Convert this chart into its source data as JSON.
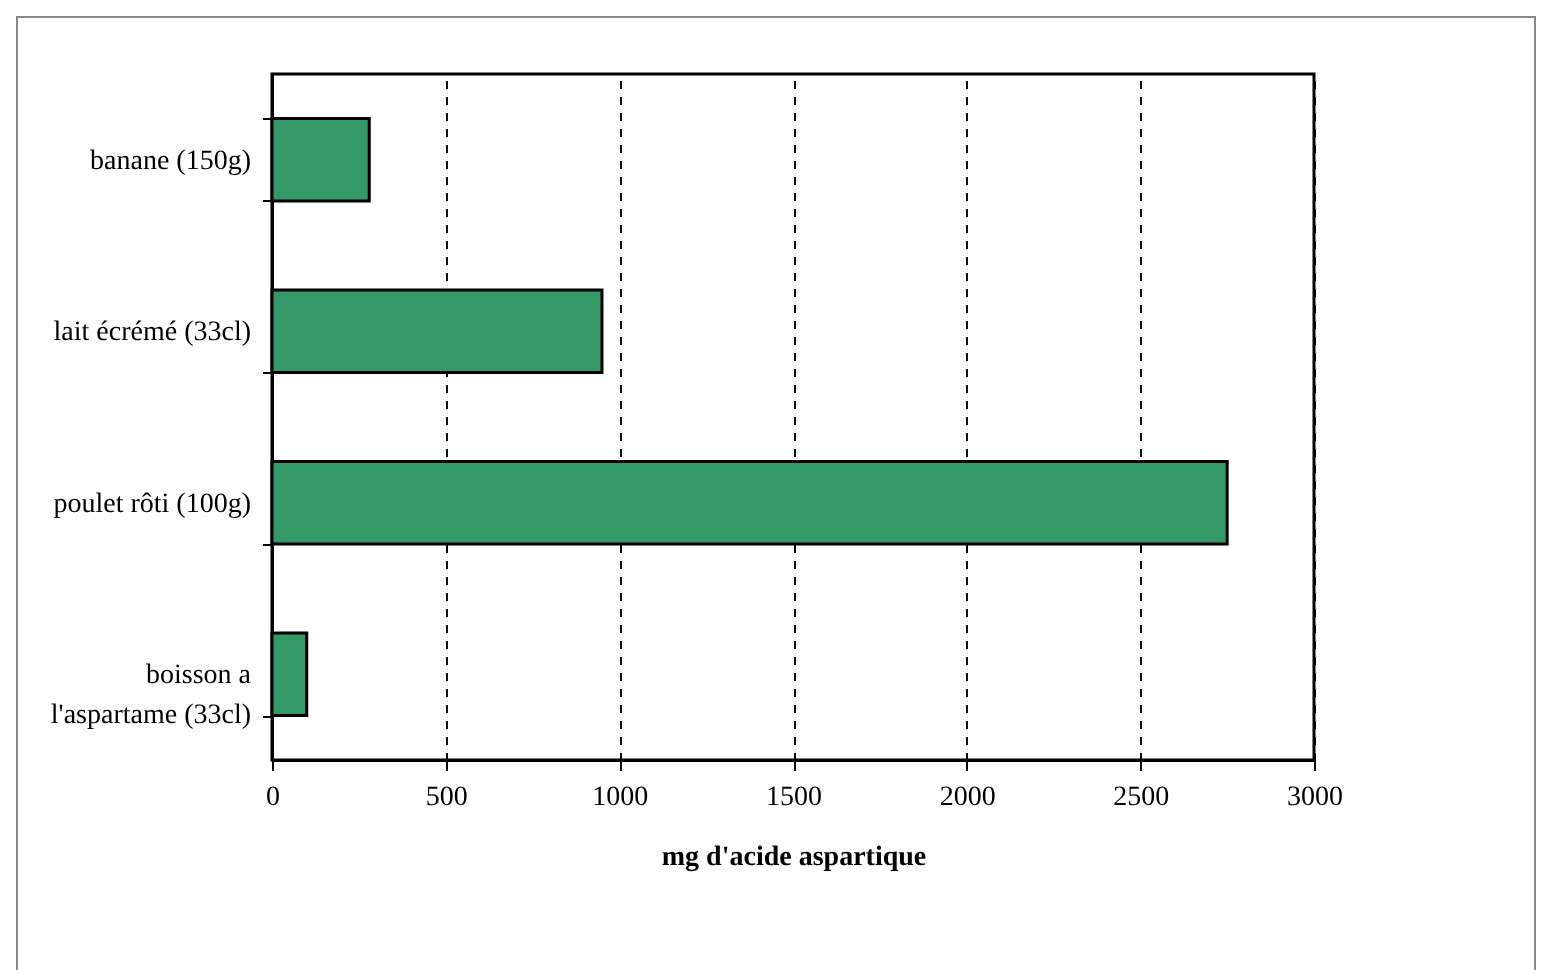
{
  "chart_data": {
    "type": "bar",
    "orientation": "horizontal",
    "categories": [
      "banane (150g)",
      "lait écrémé (33cl)",
      "poulet rôti (100g)",
      "boisson a l'aspartame (33cl)"
    ],
    "values": [
      280,
      950,
      2750,
      100
    ],
    "color": "#339966",
    "xlabel": "mg d'acide aspartique",
    "xlim": [
      0,
      3000
    ],
    "xticks": [
      0,
      500,
      1000,
      1500,
      2000,
      2500,
      3000
    ],
    "grid": "x"
  }
}
